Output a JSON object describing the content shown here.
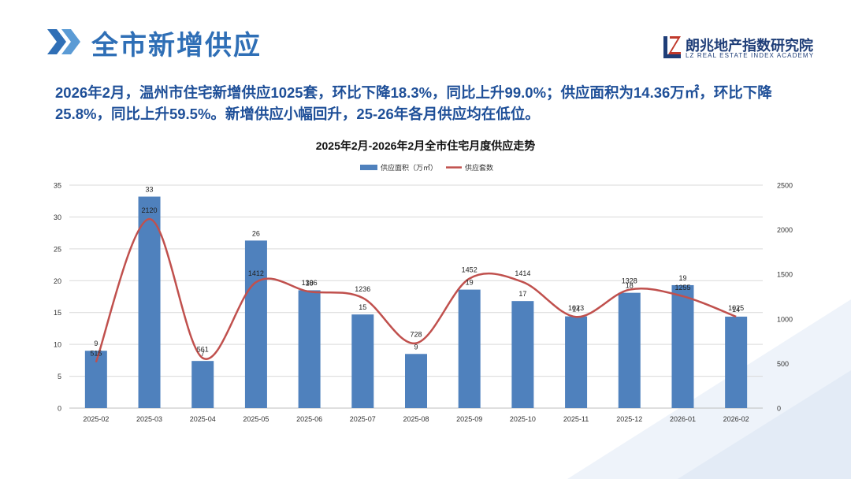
{
  "header": {
    "title": "全市新增供应",
    "logo_cn": "朗兆地产指数研究院",
    "logo_en": "LZ REAL ESTATE INDEX ACADEMY",
    "accent": "#2f6fb6"
  },
  "summary": {
    "text": "2026年2月，温州市住宅新增供应1025套，环比下降18.3%，同比上升99.0%；供应面积为14.36万㎡，环比下降25.8%，同比上升59.5%。新增供应小幅回升，25-26年各月供应均在低位。"
  },
  "chart_data": {
    "type": "bar+line",
    "title": "2025年2月-2026年2月全市住宅月度供应走势",
    "categories": [
      "2025-02",
      "2025-03",
      "2025-04",
      "2025-05",
      "2025-06",
      "2025-07",
      "2025-08",
      "2025-09",
      "2025-10",
      "2025-11",
      "2025-12",
      "2026-01",
      "2026-02"
    ],
    "series": [
      {
        "name": "供应面积（万㎡）",
        "type": "bar",
        "axis": "left",
        "color": "#4f81bd",
        "values": [
          9.0,
          33.2,
          7.4,
          26.3,
          18.5,
          14.7,
          8.5,
          18.6,
          16.8,
          14.4,
          18.1,
          19.3,
          14.36
        ],
        "labels": [
          "9",
          "33",
          "7",
          "26",
          "18",
          "15",
          "9",
          "19",
          "17",
          "14",
          "18",
          "19",
          "14"
        ]
      },
      {
        "name": "供应套数",
        "type": "line",
        "axis": "right",
        "color": "#c0504d",
        "values": [
          515,
          2120,
          561,
          1412,
          1306,
          1236,
          728,
          1452,
          1414,
          1023,
          1328,
          1255,
          1025
        ],
        "labels": [
          "515",
          "2120",
          "561",
          "1412",
          "1306",
          "1236",
          "728",
          "1452",
          "1414",
          "1023",
          "1328",
          "1255",
          "1025"
        ]
      }
    ],
    "y_left": {
      "min": 0,
      "max": 35,
      "ticks": [
        "0",
        "5",
        "10",
        "15",
        "20",
        "25",
        "30",
        "35"
      ]
    },
    "y_right": {
      "min": 0,
      "max": 2500,
      "ticks": [
        "0",
        "500",
        "1000",
        "1500",
        "2000",
        "2500"
      ]
    },
    "grid": true,
    "legend_position": "top-center"
  }
}
